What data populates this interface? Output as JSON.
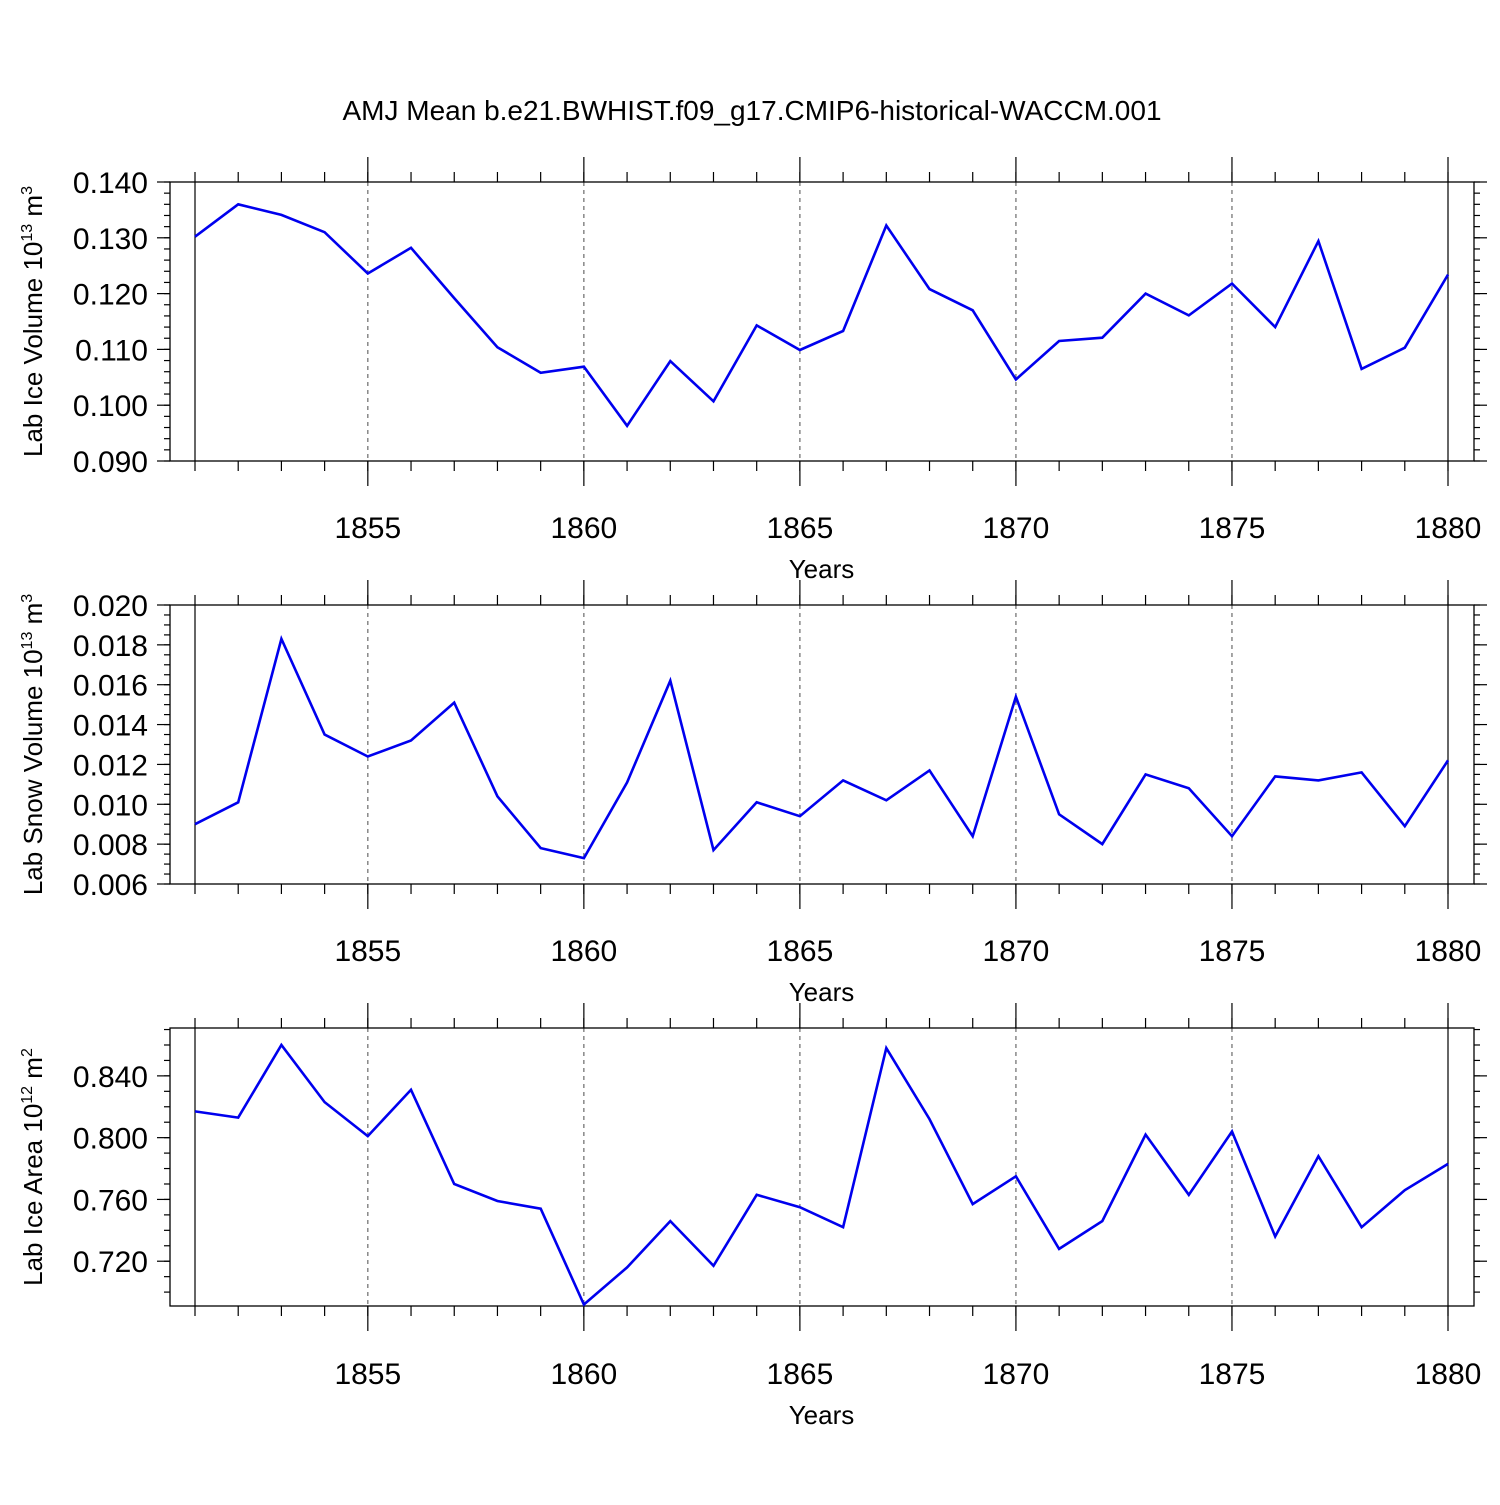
{
  "title": "AMJ Mean b.e21.BWHIST.f09_g17.CMIP6-historical-WACCM.001",
  "colors": {
    "line": "#0000ee",
    "grid": "#6a6a6a",
    "axis": "#000000"
  },
  "chart_data": [
    {
      "type": "line",
      "name": "lab-ice-volume",
      "ylabel_main": "Lab Ice Volume 10",
      "ylabel_sup": "13",
      "ylabel_unit": " m",
      "ylabel_unit_sup": "3",
      "xlabel": "Years",
      "xlim": [
        1851,
        1880
      ],
      "ylim": [
        0.09,
        0.14
      ],
      "y_ticks": [
        0.09,
        0.1,
        0.11,
        0.12,
        0.13,
        0.14
      ],
      "y_tick_labels": [
        "0.090",
        "0.100",
        "0.110",
        "0.120",
        "0.130",
        "0.140"
      ],
      "y_minor_step": 0.002,
      "x_ticks": [
        1855,
        1860,
        1865,
        1870,
        1875,
        1880
      ],
      "x_tick_labels": [
        "1855",
        "1860",
        "1865",
        "1870",
        "1875",
        "1880"
      ],
      "grid_x": [
        1855,
        1860,
        1865,
        1870,
        1875
      ],
      "x": [
        1851,
        1852,
        1853,
        1854,
        1855,
        1856,
        1857,
        1858,
        1859,
        1860,
        1861,
        1862,
        1863,
        1864,
        1865,
        1866,
        1867,
        1868,
        1869,
        1870,
        1871,
        1872,
        1873,
        1874,
        1875,
        1876,
        1877,
        1878,
        1879,
        1880
      ],
      "values": [
        0.1302,
        0.136,
        0.1341,
        0.131,
        0.1236,
        0.1282,
        0.1192,
        0.1104,
        0.1058,
        0.1069,
        0.0963,
        0.1079,
        0.1007,
        0.1143,
        0.1099,
        0.1133,
        0.1322,
        0.1208,
        0.117,
        0.1046,
        0.1115,
        0.1121,
        0.12,
        0.1161,
        0.1218,
        0.114,
        0.1294,
        0.1065,
        0.1103,
        0.1234
      ]
    },
    {
      "type": "line",
      "name": "lab-snow-volume",
      "ylabel_main": "Lab Snow Volume 10",
      "ylabel_sup": "13",
      "ylabel_unit": " m",
      "ylabel_unit_sup": "3",
      "xlabel": "Years",
      "xlim": [
        1851,
        1880
      ],
      "ylim": [
        0.006,
        0.02
      ],
      "y_ticks": [
        0.006,
        0.008,
        0.01,
        0.012,
        0.014,
        0.016,
        0.018,
        0.02
      ],
      "y_tick_labels": [
        "0.006",
        "0.008",
        "0.010",
        "0.012",
        "0.014",
        "0.016",
        "0.018",
        "0.020"
      ],
      "y_minor_step": 0.0005,
      "x_ticks": [
        1855,
        1860,
        1865,
        1870,
        1875,
        1880
      ],
      "x_tick_labels": [
        "1855",
        "1860",
        "1865",
        "1870",
        "1875",
        "1880"
      ],
      "grid_x": [
        1855,
        1860,
        1865,
        1870,
        1875
      ],
      "x": [
        1851,
        1852,
        1853,
        1854,
        1855,
        1856,
        1857,
        1858,
        1859,
        1860,
        1861,
        1862,
        1863,
        1864,
        1865,
        1866,
        1867,
        1868,
        1869,
        1870,
        1871,
        1872,
        1873,
        1874,
        1875,
        1876,
        1877,
        1878,
        1879,
        1880
      ],
      "values": [
        0.009,
        0.0101,
        0.0183,
        0.0135,
        0.0124,
        0.0132,
        0.0151,
        0.0104,
        0.0078,
        0.0073,
        0.0111,
        0.0162,
        0.0077,
        0.0101,
        0.0094,
        0.0112,
        0.0102,
        0.0117,
        0.0084,
        0.0154,
        0.0095,
        0.008,
        0.0115,
        0.0108,
        0.0084,
        0.0114,
        0.0112,
        0.0116,
        0.0089,
        0.0122
      ]
    },
    {
      "type": "line",
      "name": "lab-ice-area",
      "ylabel_main": "Lab Ice Area 10",
      "ylabel_sup": "12",
      "ylabel_unit": " m",
      "ylabel_unit_sup": "2",
      "xlabel": "Years",
      "xlim": [
        1851,
        1880
      ],
      "ylim": [
        0.691,
        0.871
      ],
      "y_ticks": [
        0.72,
        0.76,
        0.8,
        0.84
      ],
      "y_tick_labels": [
        "0.720",
        "0.760",
        "0.800",
        "0.840"
      ],
      "y_minor_step": 0.01,
      "x_ticks": [
        1855,
        1860,
        1865,
        1870,
        1875,
        1880
      ],
      "x_tick_labels": [
        "1855",
        "1860",
        "1865",
        "1870",
        "1875",
        "1880"
      ],
      "grid_x": [
        1855,
        1860,
        1865,
        1870,
        1875
      ],
      "x": [
        1851,
        1852,
        1853,
        1854,
        1855,
        1856,
        1857,
        1858,
        1859,
        1860,
        1861,
        1862,
        1863,
        1864,
        1865,
        1866,
        1867,
        1868,
        1869,
        1870,
        1871,
        1872,
        1873,
        1874,
        1875,
        1876,
        1877,
        1878,
        1879,
        1880
      ],
      "values": [
        0.817,
        0.813,
        0.86,
        0.823,
        0.801,
        0.831,
        0.77,
        0.759,
        0.754,
        0.692,
        0.716,
        0.746,
        0.717,
        0.763,
        0.755,
        0.742,
        0.858,
        0.812,
        0.757,
        0.775,
        0.728,
        0.746,
        0.802,
        0.763,
        0.804,
        0.736,
        0.788,
        0.742,
        0.766,
        0.783
      ]
    }
  ]
}
